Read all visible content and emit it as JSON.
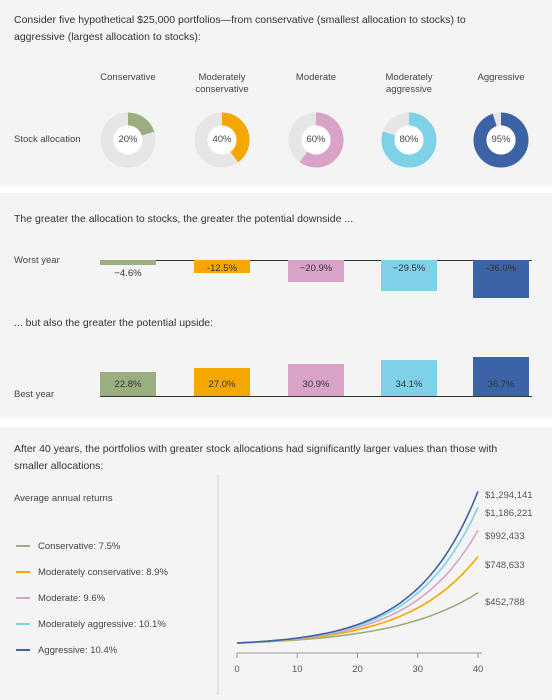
{
  "colors": {
    "conservative": "#9aae80",
    "moderately_conservative": "#f5a700",
    "moderate": "#d8a3c6",
    "moderately_aggressive": "#7fd1e8",
    "aggressive": "#3d63a7",
    "track": "#e8e8e8"
  },
  "panel1": {
    "title": "Consider five hypothetical $25,000 portfolios—from conservative (smallest allocation to stocks) to aggressive (largest allocation to stocks):",
    "row_label": "Stock allocation"
  },
  "panel2": {
    "title_downside": "The greater the allocation to stocks, the greater the potential downside ...",
    "title_upside": "... but also the greater the potential upside:",
    "worst_label": "Worst year",
    "best_label": "Best year"
  },
  "panel3": {
    "title": "After 40 years, the portfolios with greater stock allocations had significantly larger values than those with smaller allocations:",
    "legend_title": "Average annual returns"
  },
  "chart_data": [
    {
      "type": "pie",
      "title": "Stock allocation",
      "categories": [
        "Conservative",
        "Moderately conservative",
        "Moderate",
        "Moderately aggressive",
        "Aggressive"
      ],
      "values": [
        20,
        40,
        60,
        80,
        95
      ],
      "labels": [
        "20%",
        "40%",
        "60%",
        "80%",
        "95%"
      ]
    },
    {
      "type": "bar",
      "title": "Worst year",
      "categories": [
        "Conservative",
        "Moderately conservative",
        "Moderate",
        "Moderately aggressive",
        "Aggressive"
      ],
      "values": [
        -4.6,
        -12.5,
        -20.9,
        -29.5,
        -36.0
      ],
      "labels": [
        "−4.6%",
        "-12.5%",
        "−20.9%",
        "−29.5%",
        "-36.0%"
      ]
    },
    {
      "type": "bar",
      "title": "Best year",
      "categories": [
        "Conservative",
        "Moderately conservative",
        "Moderate",
        "Moderately aggressive",
        "Aggressive"
      ],
      "values": [
        22.8,
        27.0,
        30.9,
        34.1,
        36.7
      ],
      "labels": [
        "22.8%",
        "27.0%",
        "30.9%",
        "34.1%",
        "36.7%"
      ]
    },
    {
      "type": "line",
      "x": [
        0,
        5,
        10,
        15,
        20,
        25,
        30,
        35,
        40
      ],
      "xticks": [
        "0",
        "10",
        "20",
        "30",
        "40"
      ],
      "xlim": [
        0,
        40
      ],
      "ylim": [
        0,
        1294141
      ],
      "grid": false,
      "legend_position": "left",
      "series": [
        {
          "name": "Conservative: 7.5%",
          "rate": 0.075,
          "end_label": "$452,788",
          "end_value": 452788
        },
        {
          "name": "Moderately conservative: 8.9%",
          "rate": 0.089,
          "end_label": "$748,633",
          "end_value": 748633
        },
        {
          "name": "Moderate: 9.6%",
          "rate": 0.096,
          "end_label": "$992,433",
          "end_value": 992433
        },
        {
          "name": "Moderately aggressive: 10.1%",
          "rate": 0.101,
          "end_label": "$1,186,221",
          "end_value": 1186221
        },
        {
          "name": "Aggressive: 10.4%",
          "rate": 0.104,
          "end_label": "$1,294,141",
          "end_value": 1294141
        }
      ],
      "start_value": 25000
    }
  ],
  "portfolios": [
    {
      "name": "Conservative"
    },
    {
      "name": "Moderately conservative"
    },
    {
      "name": "Moderate"
    },
    {
      "name": "Moderately aggressive"
    },
    {
      "name": "Aggressive"
    }
  ]
}
